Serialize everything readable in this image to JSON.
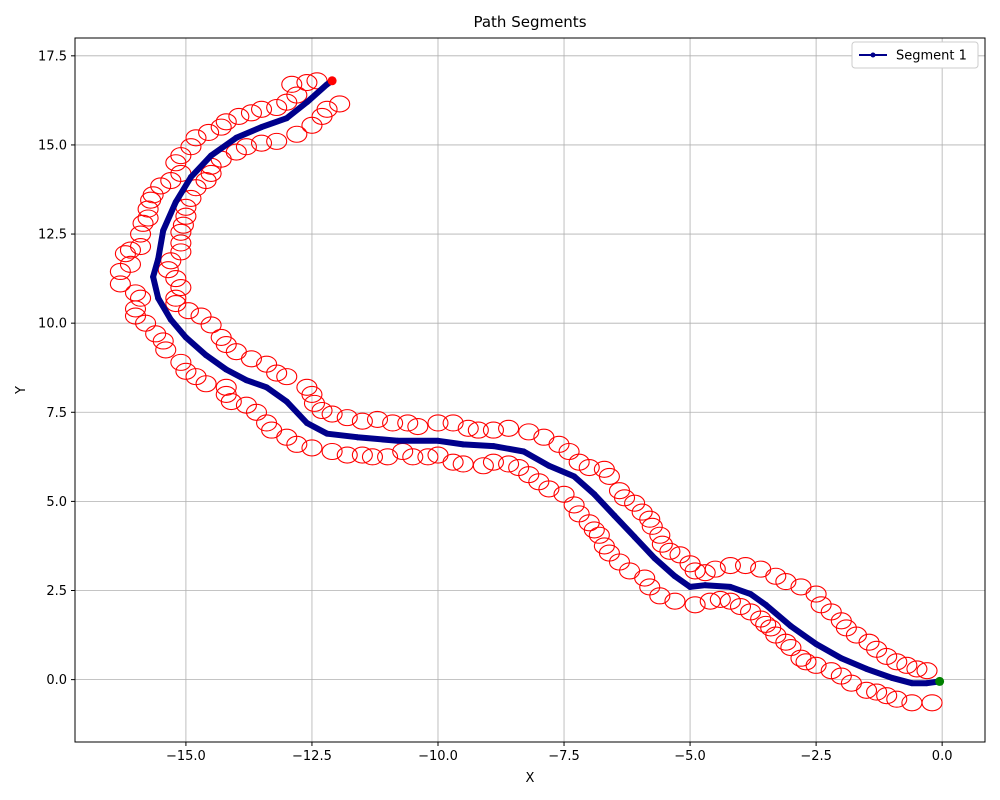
{
  "chart_data": {
    "type": "line",
    "title": "Path Segments",
    "xlabel": "X",
    "ylabel": "Y",
    "xlim": [
      -17.2,
      0.85
    ],
    "ylim": [
      -1.75,
      18.0
    ],
    "xticks": [
      -15.0,
      -12.5,
      -10.0,
      -7.5,
      -5.0,
      -2.5,
      0.0
    ],
    "xtick_labels": [
      "−15.0",
      "−12.5",
      "−10.0",
      "−7.5",
      "−5.0",
      "−2.5",
      "0.0"
    ],
    "yticks": [
      0.0,
      2.5,
      5.0,
      7.5,
      10.0,
      12.5,
      15.0,
      17.5
    ],
    "ytick_labels": [
      "0.0",
      "2.5",
      "5.0",
      "7.5",
      "10.0",
      "12.5",
      "15.0",
      "17.5"
    ],
    "grid": true,
    "legend_position": "top-right",
    "series": [
      {
        "name": "Segment 1",
        "color": "#00008b",
        "points": [
          [
            -0.05,
            -0.05
          ],
          [
            -0.3,
            -0.1
          ],
          [
            -0.6,
            -0.1
          ],
          [
            -1.0,
            0.05
          ],
          [
            -1.5,
            0.3
          ],
          [
            -2.0,
            0.6
          ],
          [
            -2.5,
            1.0
          ],
          [
            -3.0,
            1.5
          ],
          [
            -3.5,
            2.1
          ],
          [
            -3.8,
            2.4
          ],
          [
            -4.2,
            2.6
          ],
          [
            -4.7,
            2.65
          ],
          [
            -5.0,
            2.6
          ],
          [
            -5.3,
            2.9
          ],
          [
            -5.7,
            3.4
          ],
          [
            -6.1,
            4.0
          ],
          [
            -6.5,
            4.6
          ],
          [
            -6.9,
            5.2
          ],
          [
            -7.3,
            5.7
          ],
          [
            -7.8,
            6.0
          ],
          [
            -8.3,
            6.4
          ],
          [
            -8.9,
            6.55
          ],
          [
            -9.5,
            6.6
          ],
          [
            -10.0,
            6.7
          ],
          [
            -10.8,
            6.7
          ],
          [
            -11.6,
            6.8
          ],
          [
            -12.2,
            6.9
          ],
          [
            -12.6,
            7.2
          ],
          [
            -13.0,
            7.8
          ],
          [
            -13.4,
            8.2
          ],
          [
            -13.8,
            8.4
          ],
          [
            -14.2,
            8.7
          ],
          [
            -14.6,
            9.1
          ],
          [
            -15.0,
            9.6
          ],
          [
            -15.3,
            10.1
          ],
          [
            -15.55,
            10.7
          ],
          [
            -15.65,
            11.3
          ],
          [
            -15.55,
            11.8
          ],
          [
            -15.45,
            12.6
          ],
          [
            -15.2,
            13.4
          ],
          [
            -14.9,
            14.1
          ],
          [
            -14.5,
            14.7
          ],
          [
            -14.0,
            15.2
          ],
          [
            -13.5,
            15.5
          ],
          [
            -13.0,
            15.75
          ],
          [
            -12.6,
            16.2
          ],
          [
            -12.2,
            16.7
          ],
          [
            -12.1,
            16.8
          ]
        ]
      }
    ],
    "start_point": [
      -0.05,
      -0.05
    ],
    "end_point": [
      -12.1,
      16.8
    ],
    "start_color": "#008000",
    "end_color": "#ff0000",
    "circle_color": "#ff0000",
    "circles": [
      [
        -0.2,
        -0.65
      ],
      [
        -0.6,
        -0.65
      ],
      [
        -0.9,
        -0.55
      ],
      [
        -1.1,
        -0.45
      ],
      [
        -1.3,
        -0.35
      ],
      [
        -1.5,
        -0.3
      ],
      [
        -1.8,
        -0.1
      ],
      [
        -2.0,
        0.1
      ],
      [
        -2.2,
        0.25
      ],
      [
        -2.5,
        0.4
      ],
      [
        -2.7,
        0.5
      ],
      [
        -2.8,
        0.6
      ],
      [
        -3.0,
        0.9
      ],
      [
        -3.1,
        1.05
      ],
      [
        -3.3,
        1.25
      ],
      [
        -3.4,
        1.45
      ],
      [
        -3.5,
        1.55
      ],
      [
        -3.6,
        1.7
      ],
      [
        -3.8,
        1.9
      ],
      [
        -4.0,
        2.05
      ],
      [
        -4.2,
        2.2
      ],
      [
        -4.4,
        2.25
      ],
      [
        -4.6,
        2.2
      ],
      [
        -4.9,
        2.1
      ],
      [
        -5.3,
        2.2
      ],
      [
        -5.6,
        2.35
      ],
      [
        -5.8,
        2.6
      ],
      [
        -5.9,
        2.85
      ],
      [
        -6.2,
        3.05
      ],
      [
        -6.4,
        3.3
      ],
      [
        -6.6,
        3.55
      ],
      [
        -6.7,
        3.75
      ],
      [
        -6.8,
        4.05
      ],
      [
        -6.9,
        4.2
      ],
      [
        -7.0,
        4.4
      ],
      [
        -7.2,
        4.65
      ],
      [
        -7.3,
        4.9
      ],
      [
        -7.5,
        5.2
      ],
      [
        -7.8,
        5.35
      ],
      [
        -8.0,
        5.55
      ],
      [
        -8.2,
        5.75
      ],
      [
        -8.4,
        5.95
      ],
      [
        -8.6,
        6.05
      ],
      [
        -8.9,
        6.1
      ],
      [
        -9.1,
        6.0
      ],
      [
        -9.5,
        6.05
      ],
      [
        -9.7,
        6.1
      ],
      [
        -10.0,
        6.3
      ],
      [
        -10.2,
        6.25
      ],
      [
        -10.5,
        6.25
      ],
      [
        -10.7,
        6.4
      ],
      [
        -11.0,
        6.25
      ],
      [
        -11.3,
        6.25
      ],
      [
        -11.5,
        6.3
      ],
      [
        -11.8,
        6.3
      ],
      [
        -12.1,
        6.4
      ],
      [
        -12.5,
        6.5
      ],
      [
        -12.8,
        6.6
      ],
      [
        -13.0,
        6.8
      ],
      [
        -13.3,
        7.0
      ],
      [
        -13.4,
        7.2
      ],
      [
        -13.6,
        7.5
      ],
      [
        -13.8,
        7.7
      ],
      [
        -14.1,
        7.8
      ],
      [
        -14.2,
        8.0
      ],
      [
        -14.2,
        8.2
      ],
      [
        -14.6,
        8.3
      ],
      [
        -14.8,
        8.5
      ],
      [
        -15.0,
        8.65
      ],
      [
        -15.1,
        8.9
      ],
      [
        -15.4,
        9.25
      ],
      [
        -15.45,
        9.5
      ],
      [
        -15.6,
        9.7
      ],
      [
        -15.8,
        10.0
      ],
      [
        -16.0,
        10.2
      ],
      [
        -16.0,
        10.4
      ],
      [
        -15.9,
        10.7
      ],
      [
        -16.0,
        10.85
      ],
      [
        -16.3,
        11.1
      ],
      [
        -16.3,
        11.45
      ],
      [
        -16.1,
        11.65
      ],
      [
        -16.2,
        11.95
      ],
      [
        -16.1,
        12.05
      ],
      [
        -15.9,
        12.15
      ],
      [
        -15.9,
        12.5
      ],
      [
        -15.85,
        12.8
      ],
      [
        -15.75,
        12.95
      ],
      [
        -15.75,
        13.2
      ],
      [
        -15.7,
        13.45
      ],
      [
        -15.65,
        13.6
      ],
      [
        -15.5,
        13.85
      ],
      [
        -15.3,
        14.0
      ],
      [
        -15.1,
        14.2
      ],
      [
        -15.2,
        14.5
      ],
      [
        -15.1,
        14.7
      ],
      [
        -14.9,
        14.95
      ],
      [
        -14.8,
        15.2
      ],
      [
        -14.55,
        15.35
      ],
      [
        -14.3,
        15.5
      ],
      [
        -14.2,
        15.65
      ],
      [
        -13.95,
        15.8
      ],
      [
        -13.7,
        15.9
      ],
      [
        -13.5,
        16.0
      ],
      [
        -13.2,
        16.05
      ],
      [
        -13.0,
        16.2
      ],
      [
        -12.8,
        16.4
      ],
      [
        -12.9,
        16.7
      ],
      [
        -12.6,
        16.75
      ],
      [
        -12.4,
        16.8
      ],
      [
        -11.95,
        16.15
      ],
      [
        -12.2,
        16.0
      ],
      [
        -12.3,
        15.8
      ],
      [
        -12.5,
        15.55
      ],
      [
        -12.8,
        15.3
      ],
      [
        -13.2,
        15.1
      ],
      [
        -13.5,
        15.05
      ],
      [
        -13.8,
        14.95
      ],
      [
        -14.0,
        14.8
      ],
      [
        -14.3,
        14.6
      ],
      [
        -14.5,
        14.4
      ],
      [
        -14.5,
        14.2
      ],
      [
        -14.6,
        14.0
      ],
      [
        -14.8,
        13.8
      ],
      [
        -14.9,
        13.5
      ],
      [
        -15.0,
        13.25
      ],
      [
        -15.0,
        13.0
      ],
      [
        -15.05,
        12.75
      ],
      [
        -15.1,
        12.55
      ],
      [
        -15.1,
        12.25
      ],
      [
        -15.1,
        12.0
      ],
      [
        -15.3,
        11.75
      ],
      [
        -15.35,
        11.5
      ],
      [
        -15.2,
        11.25
      ],
      [
        -15.1,
        11.0
      ],
      [
        -15.2,
        10.7
      ],
      [
        -15.2,
        10.55
      ],
      [
        -14.95,
        10.35
      ],
      [
        -14.7,
        10.2
      ],
      [
        -14.5,
        9.95
      ],
      [
        -14.3,
        9.6
      ],
      [
        -14.2,
        9.4
      ],
      [
        -14.0,
        9.2
      ],
      [
        -13.7,
        9.0
      ],
      [
        -13.4,
        8.85
      ],
      [
        -13.2,
        8.6
      ],
      [
        -13.0,
        8.5
      ],
      [
        -12.6,
        8.2
      ],
      [
        -12.5,
        8.0
      ],
      [
        -12.45,
        7.75
      ],
      [
        -12.3,
        7.55
      ],
      [
        -12.1,
        7.45
      ],
      [
        -11.8,
        7.35
      ],
      [
        -11.5,
        7.25
      ],
      [
        -11.2,
        7.3
      ],
      [
        -10.9,
        7.2
      ],
      [
        -10.6,
        7.2
      ],
      [
        -10.4,
        7.1
      ],
      [
        -10.0,
        7.2
      ],
      [
        -9.7,
        7.2
      ],
      [
        -9.4,
        7.05
      ],
      [
        -9.2,
        7.0
      ],
      [
        -8.9,
        7.0
      ],
      [
        -8.6,
        7.05
      ],
      [
        -8.2,
        6.95
      ],
      [
        -7.9,
        6.8
      ],
      [
        -7.6,
        6.6
      ],
      [
        -7.4,
        6.4
      ],
      [
        -7.2,
        6.1
      ],
      [
        -7.0,
        5.95
      ],
      [
        -6.7,
        5.9
      ],
      [
        -6.6,
        5.7
      ],
      [
        -6.4,
        5.3
      ],
      [
        -6.3,
        5.1
      ],
      [
        -6.1,
        4.95
      ],
      [
        -5.95,
        4.7
      ],
      [
        -5.8,
        4.5
      ],
      [
        -5.75,
        4.3
      ],
      [
        -5.6,
        4.05
      ],
      [
        -5.55,
        3.8
      ],
      [
        -5.4,
        3.6
      ],
      [
        -5.2,
        3.5
      ],
      [
        -5.0,
        3.25
      ],
      [
        -4.9,
        3.05
      ],
      [
        -4.7,
        3.0
      ],
      [
        -4.5,
        3.1
      ],
      [
        -4.2,
        3.2
      ],
      [
        -3.9,
        3.2
      ],
      [
        -3.6,
        3.1
      ],
      [
        -3.3,
        2.9
      ],
      [
        -3.1,
        2.75
      ],
      [
        -2.8,
        2.6
      ],
      [
        -2.5,
        2.4
      ],
      [
        -2.4,
        2.1
      ],
      [
        -2.2,
        1.9
      ],
      [
        -2.0,
        1.65
      ],
      [
        -1.9,
        1.45
      ],
      [
        -1.7,
        1.25
      ],
      [
        -1.45,
        1.05
      ],
      [
        -1.3,
        0.85
      ],
      [
        -1.1,
        0.65
      ],
      [
        -0.9,
        0.5
      ],
      [
        -0.7,
        0.4
      ],
      [
        -0.5,
        0.3
      ],
      [
        -0.3,
        0.25
      ]
    ]
  }
}
